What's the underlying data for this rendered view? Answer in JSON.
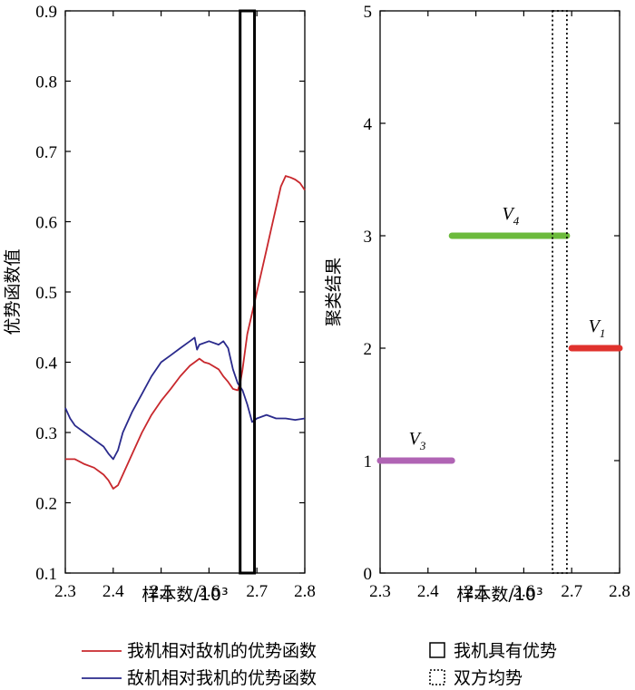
{
  "chart_data": [
    {
      "type": "line",
      "xlabel": "样本数/10³",
      "ylabel": "优势函数值",
      "xlim": [
        2.3,
        2.8
      ],
      "ylim": [
        0.1,
        0.9
      ],
      "xticks": [
        "2.3",
        "2.4",
        "2.5",
        "2.6",
        "2.7",
        "2.8"
      ],
      "yticks": [
        "0.1",
        "0.2",
        "0.3",
        "0.4",
        "0.5",
        "0.6",
        "0.7",
        "0.8",
        "0.9"
      ],
      "grid": false,
      "series": [
        {
          "name": "我机相对敌机的优势函数",
          "color": "#c8282d",
          "x": [
            2.3,
            2.32,
            2.34,
            2.36,
            2.38,
            2.39,
            2.4,
            2.41,
            2.42,
            2.44,
            2.46,
            2.48,
            2.5,
            2.52,
            2.54,
            2.56,
            2.57,
            2.58,
            2.59,
            2.6,
            2.62,
            2.63,
            2.64,
            2.65,
            2.66,
            2.665,
            2.67,
            2.68,
            2.69,
            2.7,
            2.71,
            2.72,
            2.73,
            2.74,
            2.75,
            2.76,
            2.77,
            2.78,
            2.79,
            2.8
          ],
          "y": [
            0.262,
            0.262,
            0.255,
            0.25,
            0.24,
            0.232,
            0.22,
            0.225,
            0.24,
            0.27,
            0.3,
            0.325,
            0.345,
            0.362,
            0.38,
            0.395,
            0.4,
            0.405,
            0.4,
            0.398,
            0.39,
            0.38,
            0.372,
            0.362,
            0.36,
            0.37,
            0.39,
            0.44,
            0.47,
            0.5,
            0.53,
            0.56,
            0.59,
            0.62,
            0.65,
            0.665,
            0.663,
            0.66,
            0.655,
            0.645
          ]
        },
        {
          "name": "敌机相对我机的优势函数",
          "color": "#2a2a8c",
          "x": [
            2.3,
            2.31,
            2.32,
            2.34,
            2.36,
            2.38,
            2.39,
            2.4,
            2.41,
            2.42,
            2.44,
            2.46,
            2.48,
            2.5,
            2.52,
            2.54,
            2.56,
            2.57,
            2.575,
            2.58,
            2.6,
            2.62,
            2.63,
            2.64,
            2.65,
            2.66,
            2.67,
            2.68,
            2.69,
            2.7,
            2.72,
            2.74,
            2.76,
            2.78,
            2.8
          ],
          "y": [
            0.335,
            0.32,
            0.31,
            0.3,
            0.29,
            0.28,
            0.27,
            0.262,
            0.275,
            0.3,
            0.33,
            0.355,
            0.38,
            0.4,
            0.41,
            0.42,
            0.43,
            0.435,
            0.418,
            0.425,
            0.43,
            0.425,
            0.43,
            0.42,
            0.39,
            0.37,
            0.36,
            0.34,
            0.315,
            0.32,
            0.325,
            0.32,
            0.32,
            0.318,
            0.32
          ]
        }
      ],
      "annotations": [
        {
          "kind": "rectangle",
          "legend": "我机具有优势",
          "x_range": [
            2.665,
            2.695
          ]
        }
      ]
    },
    {
      "type": "scatter",
      "xlabel": "样本数/10³",
      "ylabel": "聚类结果",
      "xlim": [
        2.3,
        2.8
      ],
      "ylim": [
        0,
        5
      ],
      "xticks": [
        "2.3",
        "2.4",
        "2.5",
        "2.6",
        "2.7",
        "2.8"
      ],
      "yticks": [
        "0",
        "1",
        "2",
        "3",
        "4",
        "5"
      ],
      "grid": false,
      "segments": [
        {
          "label": "V",
          "sub": "3",
          "color": "#b064b4",
          "x_start": 2.3,
          "x_end": 2.45,
          "y": 1
        },
        {
          "label": "V",
          "sub": "4",
          "color": "#6cba3c",
          "x_start": 2.45,
          "x_end": 2.69,
          "y": 3
        },
        {
          "label": "V",
          "sub": "1",
          "color": "#e0322d",
          "x_start": 2.7,
          "x_end": 2.8,
          "y": 2
        }
      ],
      "annotations": [
        {
          "kind": "dotted-rectangle",
          "legend": "双方均势",
          "x_range": [
            2.66,
            2.69
          ]
        }
      ]
    }
  ],
  "legend": [
    {
      "label": "我机相对敌机的优势函数",
      "color": "#c8282d",
      "kind": "line"
    },
    {
      "label": "敌机相对我机的优势函数",
      "color": "#2a2a8c",
      "kind": "line"
    },
    {
      "label": "我机具有优势",
      "kind": "solid-box"
    },
    {
      "label": "双方均势",
      "kind": "dotted-box"
    }
  ]
}
